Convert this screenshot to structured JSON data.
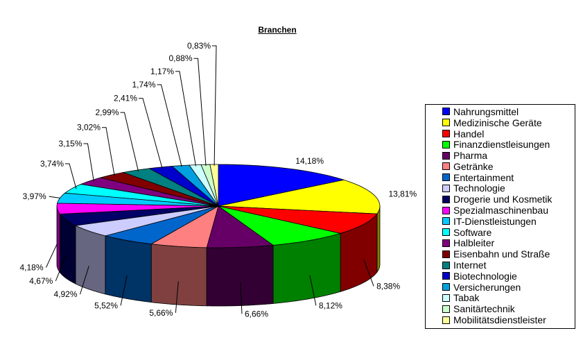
{
  "chart_data": {
    "type": "pie",
    "title": "Branchen",
    "legend_position": "right",
    "categories": [
      "Nahrungsmittel",
      "Medizinische Geräte",
      "Handel",
      "Finanzdienstleisungen",
      "Pharma",
      "Getränke",
      "Entertainment",
      "Technologie",
      "Drogerie und Kosmetik",
      "Spezialmaschinenbau",
      "IT-Dienstleistungen",
      "Software",
      "Halbleiter",
      "Eisenbahn und Straße",
      "Internet",
      "Biotechnologie",
      "Versicherungen",
      "Tabak",
      "Sanitärtechnik",
      "Mobilitätsdienstleister"
    ],
    "values": [
      14.18,
      13.81,
      8.38,
      8.12,
      6.66,
      5.66,
      5.52,
      4.92,
      4.67,
      4.18,
      3.97,
      3.74,
      3.15,
      3.02,
      2.99,
      2.41,
      1.74,
      1.17,
      0.88,
      0.83
    ],
    "labels": [
      "14,18%",
      "13,81%",
      "8,38%",
      "8,12%",
      "6,66%",
      "5,66%",
      "5,52%",
      "4,92%",
      "4,67%",
      "4,18%",
      "3,97%",
      "3,74%",
      "3,15%",
      "3,02%",
      "2,99%",
      "2,41%",
      "1,74%",
      "1,17%",
      "0,88%",
      "0,83%"
    ],
    "colors": [
      "#0000ff",
      "#ffff00",
      "#ff0000",
      "#00ff00",
      "#660066",
      "#ff8080",
      "#0066cc",
      "#ccccff",
      "#000066",
      "#ff00ff",
      "#00ccff",
      "#00ffff",
      "#800080",
      "#800000",
      "#008080",
      "#0000cc",
      "#00a0e0",
      "#ccffff",
      "#ccffcc",
      "#ffff99"
    ]
  }
}
